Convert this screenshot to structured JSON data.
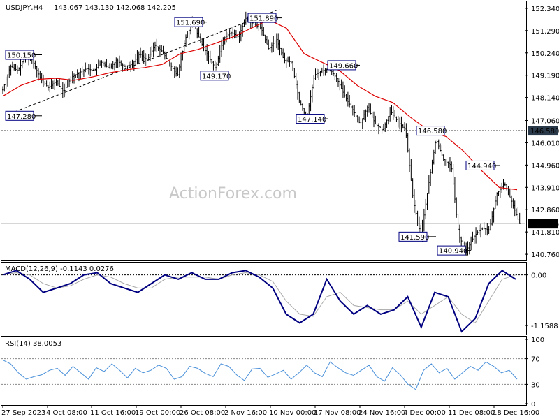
{
  "chart_data": {
    "type": "line",
    "symbol_header": "USDJPY,H4",
    "ohlc_header": "143.067 143.130 142.068 142.205",
    "watermark": "ActionForex.com",
    "price_panel": {
      "ylim": [
        140.5,
        152.6
      ],
      "y_ticks": [
        "152.340",
        "151.290",
        "150.240",
        "149.190",
        "148.140",
        "147.060",
        "146.010",
        "144.960",
        "143.910",
        "142.860",
        "141.810",
        "140.760"
      ],
      "current_price": "142.205",
      "level_line": "146.580",
      "grid": false,
      "series": [
        {
          "type": "candlestick",
          "color": "#000000",
          "close_path": [
            148.5,
            149.6,
            149.4,
            150.15,
            149.8,
            149.0,
            148.6,
            148.9,
            148.4,
            149.1,
            149.3,
            149.5,
            149.4,
            149.8,
            149.5,
            149.9,
            149.6,
            149.7,
            150.2,
            149.9,
            150.6,
            150.3,
            149.7,
            149.17,
            150.9,
            151.69,
            150.8,
            150.1,
            149.5,
            150.9,
            151.2,
            151.0,
            151.89,
            151.6,
            151.4,
            150.4,
            150.9,
            149.9,
            149.8,
            148.0,
            147.14,
            149.2,
            149.4,
            149.5,
            149.0,
            148.2,
            147.6,
            146.9,
            147.7,
            146.9,
            146.6,
            147.5,
            147.0,
            146.6,
            143.3,
            141.59,
            144.0,
            146.2,
            145.2,
            144.94,
            141.6,
            140.94,
            141.6,
            142.0,
            141.9,
            143.6,
            144.1,
            143.2,
            142.205
          ]
        },
        {
          "type": "moving average",
          "color": "#dd0000",
          "values": [
            148.2,
            148.7,
            149.0,
            149.05,
            148.95,
            149.1,
            149.3,
            149.45,
            149.55,
            149.7,
            150.2,
            150.4,
            150.7,
            151.0,
            151.4,
            151.8,
            151.4,
            150.2,
            149.8,
            149.4,
            148.7,
            148.2,
            147.9,
            147.2,
            146.6,
            146.3,
            145.6,
            144.7,
            143.9,
            143.8
          ]
        }
      ],
      "labels": [
        "150.150",
        "147.280",
        "151.690",
        "149.170",
        "151.890",
        "147.140",
        "149.660",
        "146.580",
        "141.590",
        "144.940",
        "140.940"
      ]
    },
    "macd_panel": {
      "title": "MACD(12,26,9) -0.1143 0.0276",
      "ylim": [
        -1.35,
        0.25
      ],
      "y_ticks": [
        "0.00",
        "-1.1588"
      ],
      "series": [
        {
          "name": "MACD",
          "color": "#000080",
          "values": [
            0.0,
            0.1,
            -0.1,
            -0.4,
            -0.3,
            -0.2,
            0.0,
            0.05,
            -0.2,
            -0.3,
            -0.4,
            -0.2,
            0.0,
            -0.1,
            0.05,
            -0.1,
            -0.1,
            0.05,
            0.1,
            -0.05,
            -0.3,
            -0.9,
            -1.1,
            -0.9,
            -0.1,
            -0.6,
            -0.9,
            -0.7,
            -0.9,
            -0.8,
            -0.5,
            -1.2,
            -0.4,
            -0.5,
            -1.3,
            -1.0,
            -0.2,
            0.1,
            -0.1
          ]
        },
        {
          "name": "Signal",
          "color": "#a8a8a8",
          "values": [
            0.0,
            0.05,
            0.0,
            -0.2,
            -0.3,
            -0.25,
            -0.1,
            0.0,
            -0.05,
            -0.2,
            -0.3,
            -0.3,
            -0.1,
            -0.05,
            -0.05,
            -0.05,
            -0.1,
            0.0,
            0.05,
            0.0,
            -0.15,
            -0.6,
            -0.9,
            -0.95,
            -0.5,
            -0.4,
            -0.7,
            -0.75,
            -0.8,
            -0.8,
            -0.6,
            -0.9,
            -0.7,
            -0.5,
            -0.9,
            -1.1,
            -0.6,
            -0.1,
            0.0
          ]
        }
      ]
    },
    "rsi_panel": {
      "title": "RSI(14) 38.0053",
      "ylim": [
        0,
        100
      ],
      "y_ticks": [
        "100",
        "70",
        "30",
        "0"
      ],
      "series": [
        {
          "name": "RSI",
          "color": "#4a90d9",
          "values": [
            68,
            62,
            48,
            38,
            42,
            45,
            52,
            55,
            44,
            58,
            48,
            38,
            56,
            50,
            62,
            52,
            40,
            55,
            48,
            52,
            60,
            55,
            38,
            42,
            58,
            55,
            47,
            42,
            62,
            58,
            45,
            36,
            54,
            55,
            41,
            46,
            52,
            38,
            48,
            60,
            48,
            42,
            65,
            56,
            48,
            44,
            52,
            60,
            42,
            35,
            56,
            45,
            30,
            22,
            52,
            62,
            48,
            55,
            38,
            48,
            58,
            52,
            65,
            58,
            48,
            52,
            38
          ]
        }
      ]
    },
    "x_tick_labels": [
      "27 Sep 2023",
      "4 Oct 08:00",
      "11 Oct 16:00",
      "19 Oct 00:00",
      "26 Oct 08:00",
      "2 Nov 16:00",
      "10 Nov 00:00",
      "17 Nov 08:00",
      "24 Nov 16:00",
      "4 Dec 00:00",
      "11 Dec 08:00",
      "18 Dec 16:00"
    ]
  },
  "colors": {
    "candle": "#000000",
    "ma": "#dd0000",
    "macd_main": "#000080",
    "macd_signal": "#a8a8a8",
    "rsi": "#4a90d9",
    "current_price_box": "#000000",
    "level_box": "#2b3a4a",
    "label_border": "#000080",
    "dotted": "#000000"
  }
}
